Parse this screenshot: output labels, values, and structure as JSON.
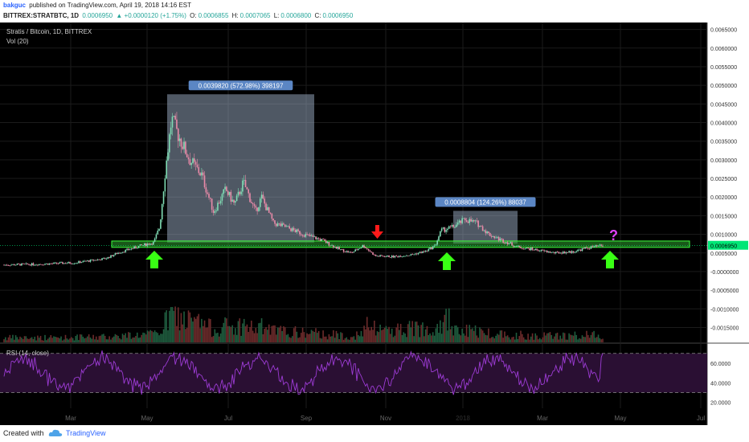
{
  "header": {
    "author": "bakguc",
    "published_text": "published on TradingView.com, April 19, 2018 14:16 EST",
    "symbol": "BITTREX:STRATBTC, 1D",
    "last_price": "0.0006950",
    "change": "▲ +0.0000120 (+1.75%)",
    "open_label": "O:",
    "open": "0.0006855",
    "high_label": "H:",
    "high": "0.0007065",
    "low_label": "L:",
    "low": "0.0006800",
    "close_label": "C:",
    "close": "0.0006950"
  },
  "chart_legend": {
    "title": "Stratis / Bitcoin, 1D, BITTREX",
    "volume_label": "Vol (20)",
    "rsi_label": "RSI (14, close)"
  },
  "colors": {
    "background": "#000000",
    "up": "#7fdcb4",
    "down": "#e98aa8",
    "support_zone": "#2ea02e",
    "arrow_green": "#39ff14",
    "arrow_red": "#ff1a1a",
    "question": "#e040fb",
    "rsi_line": "#9c3bd4",
    "rsi_band": "#2a0f33",
    "measure_box": "#b0c4de",
    "measure_label": "#5b86c4"
  },
  "chart_data": {
    "type": "candlestick",
    "title": "Stratis / Bitcoin, 1D, BITTREX",
    "x_tick_labels": [
      "Mar",
      "May",
      "Jul",
      "Sep",
      "Nov",
      "2018",
      "Mar",
      "May",
      "Jul"
    ],
    "price_axis": {
      "ylim": [
        -0.0019,
        0.0066
      ],
      "tick_labels": [
        "0.0065000",
        "0.0060000",
        "0.0055000",
        "0.0050000",
        "0.0045000",
        "0.0040000",
        "0.0035000",
        "0.0030000",
        "0.0025000",
        "0.0020000",
        "0.0015000",
        "0.0010000",
        "0.0005000",
        "-0.0000000",
        "-0.0005000",
        "-0.0010000",
        "-0.0015000"
      ],
      "last_price_label": "0.0006950"
    },
    "rsi_axis": {
      "ylim": [
        14,
        78
      ],
      "tick_labels": [
        "60.0000",
        "40.0000",
        "20.0000"
      ],
      "bands": [
        70,
        30
      ]
    },
    "price_path_points": [
      [
        0,
        0.00018
      ],
      [
        0.06,
        0.0002
      ],
      [
        0.12,
        0.00024
      ],
      [
        0.17,
        0.00035
      ],
      [
        0.19,
        0.0005
      ],
      [
        0.21,
        0.0006
      ],
      [
        0.23,
        0.0007
      ],
      [
        0.25,
        0.00078
      ],
      [
        0.26,
        0.0012
      ],
      [
        0.27,
        0.0028
      ],
      [
        0.28,
        0.0041
      ],
      [
        0.29,
        0.0037
      ],
      [
        0.31,
        0.003
      ],
      [
        0.33,
        0.0026
      ],
      [
        0.35,
        0.0016
      ],
      [
        0.37,
        0.0022
      ],
      [
        0.385,
        0.0018
      ],
      [
        0.4,
        0.0024
      ],
      [
        0.42,
        0.0016
      ],
      [
        0.43,
        0.002
      ],
      [
        0.45,
        0.0013
      ],
      [
        0.47,
        0.0012
      ],
      [
        0.5,
        0.001
      ],
      [
        0.53,
        0.00085
      ],
      [
        0.56,
        0.0006
      ],
      [
        0.58,
        0.0005
      ],
      [
        0.6,
        0.0007
      ],
      [
        0.62,
        0.00042
      ],
      [
        0.65,
        0.0004
      ],
      [
        0.68,
        0.00045
      ],
      [
        0.705,
        0.00055
      ],
      [
        0.72,
        0.0007
      ],
      [
        0.73,
        0.0011
      ],
      [
        0.75,
        0.0012
      ],
      [
        0.77,
        0.0014
      ],
      [
        0.79,
        0.0013
      ],
      [
        0.81,
        0.001
      ],
      [
        0.83,
        0.00085
      ],
      [
        0.86,
        0.00065
      ],
      [
        0.89,
        0.00058
      ],
      [
        0.92,
        0.0005
      ],
      [
        0.95,
        0.00053
      ],
      [
        0.97,
        0.00062
      ],
      [
        1.0,
        0.0007
      ]
    ],
    "support_zone": [
      0.00065,
      0.00082
    ],
    "measurements": [
      {
        "label": "0.0039820 (572.98%) 398197",
        "from": 0.00078,
        "to": 0.00476
      },
      {
        "label": "0.0008804 (124.26%) 88037",
        "from": 0.00075,
        "to": 0.00163
      }
    ],
    "annotations": {
      "question_mark": "?"
    }
  },
  "footer": {
    "created_with": "Created with",
    "brand": "TradingView"
  }
}
